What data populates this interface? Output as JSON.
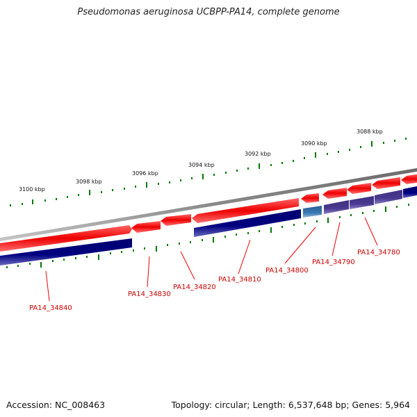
{
  "title": "Pseudomonas aeruginosa UCBPP-PA14, complete genome",
  "footer": {
    "accession": "Accession: NC_008463",
    "summary": "Topology: circular; Length: 6,537,648 bp; Genes: 5,964"
  },
  "kbp_labels": [
    "3100 kbp",
    "3098 kbp",
    "3096 kbp",
    "3094 kbp",
    "3092 kbp",
    "3090 kbp",
    "3088 kbp"
  ],
  "gene_labels": [
    "PA14_34840",
    "PA14_34830",
    "PA14_34820",
    "PA14_34810",
    "PA14_34800",
    "PA14_34790",
    "PA14_34780"
  ],
  "colors": {
    "backbone": "#808080",
    "forward_gene": "#ee0000",
    "reverse_gene": "#000080",
    "reverse_gene_light": "#4a3a90",
    "reverse_gene_blue": "#3a78b0",
    "tick": "#007700",
    "label": "#cc0000"
  }
}
